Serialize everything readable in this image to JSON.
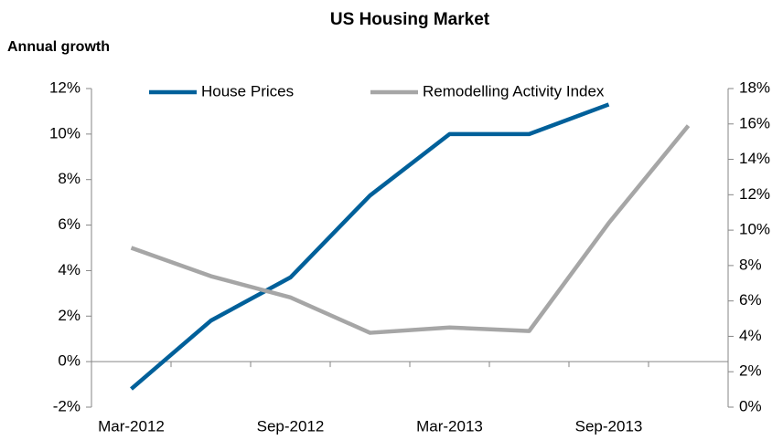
{
  "chart_data": {
    "type": "line",
    "title": "US Housing Market",
    "ylabel": "Annual growth",
    "categories": [
      "Mar-2012",
      null,
      "Sep-2012",
      null,
      "Mar-2013",
      null,
      "Sep-2013",
      null
    ],
    "series": [
      {
        "name": "House Prices",
        "color": "#00609a",
        "axis": "y",
        "values": [
          -1.2,
          1.8,
          3.7,
          7.3,
          10.0,
          10.0,
          11.3,
          null
        ]
      },
      {
        "name": "Remodelling Activity Index",
        "color": "#a6a6a6",
        "axis": "y2",
        "values": [
          9.0,
          7.4,
          6.2,
          4.2,
          4.5,
          4.3,
          10.4,
          15.9
        ]
      }
    ],
    "ylim": [
      -2,
      12
    ],
    "yticks": [
      {
        "value": -2,
        "label": "-2%"
      },
      {
        "value": 0,
        "label": "0%"
      },
      {
        "value": 2,
        "label": "2%"
      },
      {
        "value": 4,
        "label": "4%"
      },
      {
        "value": 6,
        "label": "6%"
      },
      {
        "value": 8,
        "label": "8%"
      },
      {
        "value": 10,
        "label": "10%"
      },
      {
        "value": 12,
        "label": "12%"
      }
    ],
    "y2lim": [
      0,
      18
    ],
    "y2ticks": [
      {
        "value": 0,
        "label": "0%"
      },
      {
        "value": 2,
        "label": "2%"
      },
      {
        "value": 4,
        "label": "4%"
      },
      {
        "value": 6,
        "label": "6%"
      },
      {
        "value": 8,
        "label": "8%"
      },
      {
        "value": 10,
        "label": "10%"
      },
      {
        "value": 12,
        "label": "12%"
      },
      {
        "value": 14,
        "label": "14%"
      },
      {
        "value": 16,
        "label": "16%"
      },
      {
        "value": 18,
        "label": "18%"
      }
    ],
    "grid": false,
    "legend": "top"
  }
}
